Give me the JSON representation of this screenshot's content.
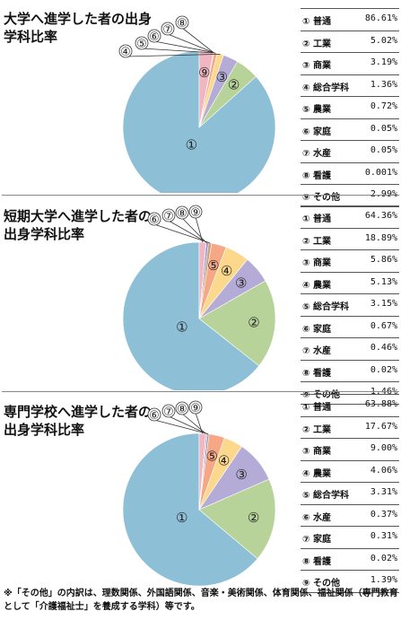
{
  "chart_data": [
    {
      "type": "pie",
      "title": "大学へ進学した者の出身学科比率",
      "categories": [
        "普通",
        "工業",
        "商業",
        "総合学科",
        "農業",
        "家庭",
        "水産",
        "看護",
        "その他"
      ],
      "values": [
        86.61,
        5.02,
        3.19,
        1.36,
        0.72,
        0.05,
        0.05,
        0.001,
        2.99
      ],
      "value_labels": [
        "86.61%",
        "5.02%",
        "3.19%",
        "1.36%",
        "0.72%",
        "0.05%",
        "0.05%",
        "0.001%",
        "2.99%"
      ],
      "numbers": [
        "①",
        "②",
        "③",
        "④",
        "⑤",
        "⑥",
        "⑦",
        "⑧",
        "⑨"
      ],
      "colors": [
        "#8dbfd6",
        "#b7d39a",
        "#b4acd6",
        "#fcd88c",
        "#f6a784",
        "#c9a27a",
        "#e99a9a",
        "#cfcfcf",
        "#f0b6c2"
      ]
    },
    {
      "type": "pie",
      "title": "短期大学へ進学した者の出身学科比率",
      "categories": [
        "普通",
        "工業",
        "商業",
        "農業",
        "総合学科",
        "家庭",
        "水産",
        "看護",
        "その他"
      ],
      "values": [
        64.36,
        18.89,
        5.86,
        5.13,
        3.15,
        0.67,
        0.46,
        0.02,
        1.46
      ],
      "value_labels": [
        "64.36%",
        "18.89%",
        "5.86%",
        "5.13%",
        "3.15%",
        "0.67%",
        "0.46%",
        "0.02%",
        "1.46%"
      ],
      "numbers": [
        "①",
        "②",
        "③",
        "④",
        "⑤",
        "⑥",
        "⑦",
        "⑧",
        "⑨"
      ],
      "colors": [
        "#8dbfd6",
        "#b7d39a",
        "#b4acd6",
        "#fcd88c",
        "#f6a784",
        "#c9a27a",
        "#8c8cd9",
        "#cfcfcf",
        "#f0b6c2"
      ]
    },
    {
      "type": "pie",
      "title": "専門学校へ進学した者の出身学科比率",
      "categories": [
        "普通",
        "工業",
        "商業",
        "農業",
        "総合学科",
        "水産",
        "家庭",
        "看護",
        "その他"
      ],
      "values": [
        63.88,
        17.67,
        9.0,
        4.06,
        3.31,
        0.37,
        0.31,
        0.02,
        1.39
      ],
      "value_labels": [
        "63.88%",
        "17.67%",
        "9.00%",
        "4.06%",
        "3.31%",
        "0.37%",
        "0.31%",
        "0.02%",
        "1.39%"
      ],
      "numbers": [
        "①",
        "②",
        "③",
        "④",
        "⑤",
        "⑥",
        "⑦",
        "⑧",
        "⑨"
      ],
      "colors": [
        "#8dbfd6",
        "#b7d39a",
        "#b4acd6",
        "#fcd88c",
        "#f6a784",
        "#8c8cd9",
        "#c9a27a",
        "#cfcfcf",
        "#f0b6c2"
      ]
    }
  ],
  "note": "※「その他」の内訳は、理数関係、外国語関係、音楽・美術関係、体育関係、福祉関係（専門教育として「介護福祉士」を養成する学科）等です。"
}
